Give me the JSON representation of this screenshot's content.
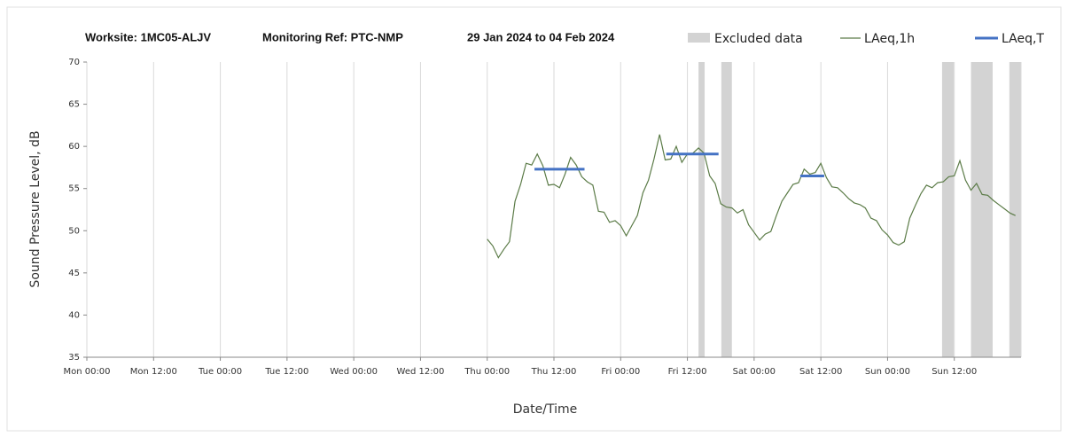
{
  "chart_data": {
    "type": "line",
    "worksite": "Worksite: 1MC05-ALJV",
    "monitoring_ref": "Monitoring Ref: PTC-NMP",
    "date_range": "29 Jan 2024 to 04 Feb 2024",
    "xlabel": "Date/Time",
    "ylabel": "Sound Pressure Level, dB",
    "xlim": [
      0,
      168
    ],
    "ylim": [
      35,
      70
    ],
    "yticks": [
      35,
      40,
      45,
      50,
      55,
      60,
      65,
      70
    ],
    "xticks": [
      {
        "value": 0,
        "label": "Mon 00:00"
      },
      {
        "value": 12,
        "label": "Mon 12:00"
      },
      {
        "value": 24,
        "label": "Tue 00:00"
      },
      {
        "value": 36,
        "label": "Tue 12:00"
      },
      {
        "value": 48,
        "label": "Wed 00:00"
      },
      {
        "value": 60,
        "label": "Wed 12:00"
      },
      {
        "value": 72,
        "label": "Thu 00:00"
      },
      {
        "value": 84,
        "label": "Thu 12:00"
      },
      {
        "value": 96,
        "label": "Fri 00:00"
      },
      {
        "value": 108,
        "label": "Fri 12:00"
      },
      {
        "value": 120,
        "label": "Sat 00:00"
      },
      {
        "value": 132,
        "label": "Sat 12:00"
      },
      {
        "value": 144,
        "label": "Sun 00:00"
      },
      {
        "value": 156,
        "label": "Sun 12:00"
      }
    ],
    "grid": true,
    "excluded": {
      "name": "Excluded data",
      "color": "#d3d3d3",
      "ranges": [
        [
          110,
          111.1
        ],
        [
          114.1,
          116
        ],
        [
          153.8,
          155.9
        ],
        [
          159,
          162.9
        ],
        [
          165.9,
          168
        ]
      ]
    },
    "series": [
      {
        "name": "LAeq,1h",
        "color": "#5b7b47",
        "x": [
          72,
          73,
          74,
          75,
          76,
          77,
          78,
          79,
          80,
          81,
          82,
          83,
          84,
          85,
          86,
          87,
          88,
          89,
          90,
          91,
          92,
          93,
          94,
          95,
          96,
          97,
          98,
          99,
          100,
          101,
          102,
          103,
          104,
          105,
          106,
          107,
          108,
          109,
          110,
          111,
          112,
          113,
          114,
          115,
          116,
          117,
          118,
          119,
          120,
          121,
          122,
          123,
          124,
          125,
          126,
          127,
          128,
          129,
          130,
          131,
          132,
          133,
          134,
          135,
          136,
          137,
          138,
          139,
          140,
          141,
          142,
          143,
          144,
          145,
          146,
          147,
          148,
          149,
          150,
          151,
          152,
          153,
          154,
          155,
          156,
          157,
          158,
          159,
          160,
          161,
          162,
          163,
          164,
          165,
          166,
          167
        ],
        "values": [
          49,
          48.2,
          46.8,
          47.8,
          48.7,
          53.5,
          55.5,
          58,
          57.8,
          59.1,
          57.7,
          55.4,
          55.5,
          55.1,
          56.7,
          58.7,
          57.8,
          56.4,
          55.8,
          55.4,
          52.3,
          52.2,
          51,
          51.2,
          50.6,
          49.4,
          50.6,
          51.8,
          54.5,
          56,
          58.5,
          61.4,
          58.4,
          58.5,
          60,
          58.1,
          59.1,
          59.2,
          59.8,
          59.2,
          56.5,
          55.6,
          53.2,
          52.8,
          52.7,
          52.1,
          52.5,
          50.7,
          49.8,
          48.9,
          49.6,
          49.9,
          51.8,
          53.5,
          54.5,
          55.5,
          55.7,
          57.3,
          56.7,
          56.9,
          58,
          56.3,
          55.2,
          55.1,
          54.5,
          53.8,
          53.3,
          53.1,
          52.7,
          51.5,
          51.2,
          50.1,
          49.5,
          48.6,
          48.3,
          48.7,
          51.5,
          53,
          54.4,
          55.4,
          55.1,
          55.7,
          55.8,
          56.4,
          56.5,
          58.3,
          56,
          54.8,
          55.6,
          54.3,
          54.2,
          53.6,
          53.1,
          52.6,
          52.1,
          51.8
        ]
      },
      {
        "name": "LAeq,T",
        "color": "#4472c4",
        "x_start": [
          80.5,
          104.2,
          128.3
        ],
        "x_end": [
          89.5,
          113.6,
          132.6
        ],
        "values": [
          57.3,
          59.1,
          56.5
        ]
      }
    ]
  }
}
